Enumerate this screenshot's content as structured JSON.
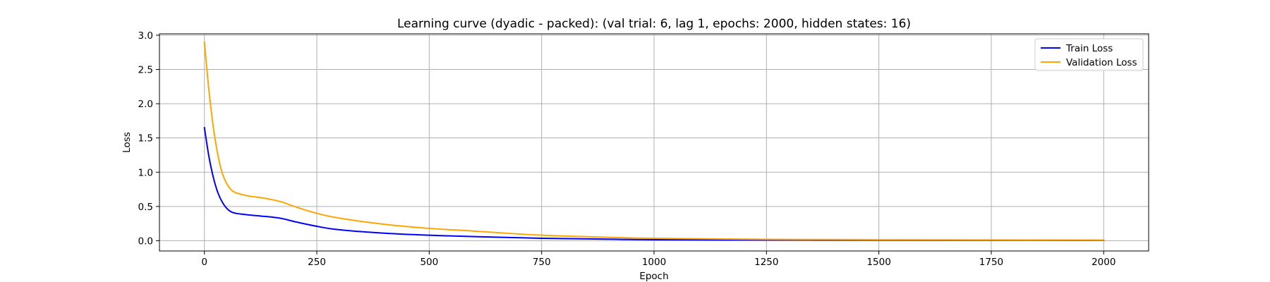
{
  "chart_data": {
    "type": "line",
    "title": "Learning curve (dyadic - packed): (val trial: 6, lag 1, epochs: 2000, hidden states: 16)",
    "xlabel": "Epoch",
    "ylabel": "Loss",
    "xlim": [
      -100,
      2100
    ],
    "ylim": [
      -0.15,
      3.02
    ],
    "xticks": [
      0,
      250,
      500,
      750,
      1000,
      1250,
      1500,
      1750,
      2000
    ],
    "xtick_labels": [
      "0",
      "250",
      "500",
      "750",
      "1000",
      "1250",
      "1500",
      "1750",
      "2000"
    ],
    "yticks": [
      0.0,
      0.5,
      1.0,
      1.5,
      2.0,
      2.5,
      3.0
    ],
    "ytick_labels": [
      "0.0",
      "0.5",
      "1.0",
      "1.5",
      "2.0",
      "2.5",
      "3.0"
    ],
    "grid": true,
    "legend_position": "top-right",
    "series": [
      {
        "name": "Train Loss",
        "color": "#0000ff",
        "x": [
          0,
          10,
          20,
          30,
          40,
          50,
          60,
          70,
          80,
          100,
          125,
          150,
          175,
          200,
          250,
          300,
          400,
          500,
          600,
          750,
          900,
          1000,
          1250,
          1500,
          1750,
          2000
        ],
        "y": [
          1.65,
          1.23,
          0.92,
          0.7,
          0.56,
          0.47,
          0.42,
          0.4,
          0.39,
          0.375,
          0.36,
          0.345,
          0.32,
          0.28,
          0.21,
          0.16,
          0.11,
          0.08,
          0.06,
          0.035,
          0.022,
          0.015,
          0.01,
          0.008,
          0.007,
          0.006
        ]
      },
      {
        "name": "Validation Loss",
        "color": "#ffa500",
        "x": [
          0,
          10,
          20,
          30,
          40,
          50,
          60,
          70,
          80,
          100,
          125,
          150,
          175,
          200,
          250,
          300,
          400,
          500,
          600,
          750,
          900,
          1000,
          1250,
          1500,
          1750,
          2000
        ],
        "y": [
          2.9,
          2.2,
          1.65,
          1.25,
          0.98,
          0.83,
          0.74,
          0.7,
          0.68,
          0.65,
          0.63,
          0.6,
          0.56,
          0.5,
          0.4,
          0.33,
          0.24,
          0.18,
          0.14,
          0.08,
          0.05,
          0.035,
          0.02,
          0.015,
          0.012,
          0.01
        ]
      }
    ]
  }
}
